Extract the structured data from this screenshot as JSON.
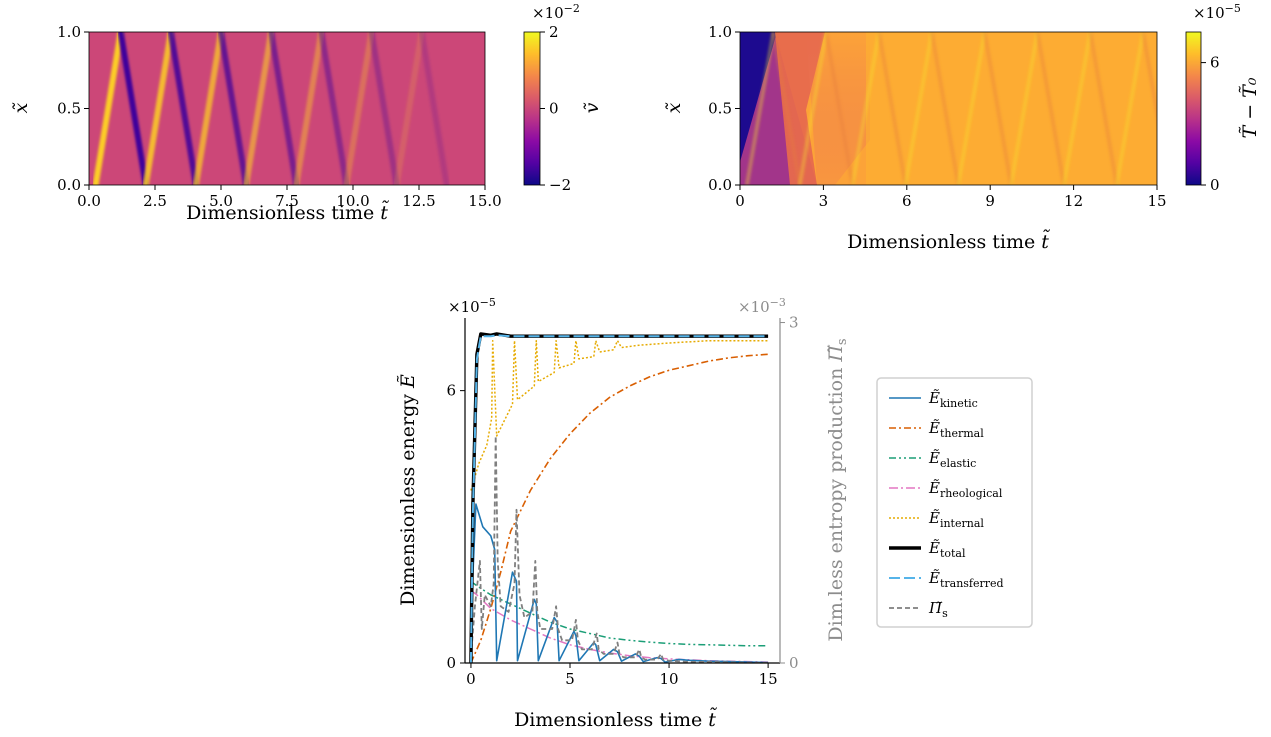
{
  "chart_data": [
    {
      "type": "heatmap",
      "xlabel": "Dimensionless time",
      "xlabel_symbol": "t̃",
      "ylabel": "x̃",
      "xlim": [
        0,
        15
      ],
      "ylim": [
        0,
        1
      ],
      "xticks": [
        0,
        2.5,
        5,
        7.5,
        10,
        12.5,
        15
      ],
      "xtick_labels": [
        "0.0",
        "2.5",
        "5.0",
        "7.5",
        "10.0",
        "12.5",
        "15.0"
      ],
      "yticks": [
        0,
        0.5,
        1
      ],
      "ytick_labels": [
        "0.0",
        "0.5",
        "1.0"
      ],
      "colorbar": {
        "label": "ṽ",
        "ticks": [
          -2,
          0,
          2
        ],
        "tick_labels": [
          "−2",
          "0",
          "2"
        ],
        "multiplier": "×10",
        "exponent": "−2",
        "range": [
          -2,
          2
        ],
        "colormap": "plasma"
      },
      "wave_speed": 0.95,
      "first_arrival": 0.25
    },
    {
      "type": "heatmap",
      "xlabel": "Dimensionless time",
      "xlabel_symbol": "t̃",
      "ylabel": "x̃",
      "xlim": [
        0,
        15
      ],
      "ylim": [
        0,
        1
      ],
      "xticks": [
        0,
        3,
        6,
        9,
        12,
        15
      ],
      "xtick_labels": [
        "0",
        "3",
        "6",
        "9",
        "12",
        "15"
      ],
      "yticks": [
        0,
        0.5,
        1
      ],
      "ytick_labels": [
        "0.0",
        "0.5",
        "1.0"
      ],
      "colorbar": {
        "label": "T̃ − T̃₀",
        "ticks": [
          0,
          6
        ],
        "tick_labels": [
          "0",
          "6"
        ],
        "multiplier": "×10",
        "exponent": "−5",
        "range": [
          0,
          7.5
        ],
        "colormap": "plasma"
      }
    },
    {
      "type": "line",
      "xlabel": "Dimensionless time",
      "xlabel_symbol": "t̃",
      "ylabel": "Dimensionless energy",
      "ylabel_symbol": "Ẽ",
      "ylabel_right": "Dim.less entropy production",
      "ylabel_right_symbol": "Π̃",
      "ylabel_right_sub": "s",
      "xlim": [
        -0.3,
        15.6
      ],
      "ylim": [
        0,
        7.6
      ],
      "ylim_right": [
        0,
        3.04
      ],
      "xticks": [
        0,
        5,
        10,
        15
      ],
      "xtick_labels": [
        "0",
        "5",
        "10",
        "15"
      ],
      "yticks": [
        0,
        6
      ],
      "ytick_labels": [
        "0",
        "6"
      ],
      "yticks_right": [
        0,
        3
      ],
      "ytick_labels_right": [
        "0",
        "3"
      ],
      "multiplier_left": "×10",
      "exponent_left": "−5",
      "multiplier_right": "×10",
      "exponent_right": "−3",
      "legend_position": "outside-right",
      "series": [
        {
          "name": "Ẽ",
          "sub": "kinetic",
          "color": "#1f77b4",
          "dash": "",
          "width": 1.6,
          "x": [
            0,
            0.25,
            0.6,
            1.0,
            1.2,
            1.3,
            2.1,
            2.3,
            2.35,
            3.2,
            3.3,
            3.4,
            4.2,
            4.35,
            4.45,
            5.2,
            5.3,
            5.45,
            6.2,
            6.3,
            6.5,
            7.2,
            7.4,
            7.6,
            8.3,
            8.5,
            8.7,
            9.4,
            9.6,
            9.8,
            10.5,
            11,
            12,
            13,
            14,
            15
          ],
          "y": [
            0.9,
            3.5,
            3.0,
            2.8,
            2.5,
            0.05,
            2.0,
            1.8,
            0.05,
            1.4,
            1.3,
            0.05,
            1.0,
            0.9,
            0.05,
            0.7,
            0.6,
            0.05,
            0.45,
            0.4,
            0.05,
            0.3,
            0.25,
            0.04,
            0.2,
            0.15,
            0.03,
            0.12,
            0.1,
            0.02,
            0.08,
            0.06,
            0.04,
            0.03,
            0.02,
            0.01
          ]
        },
        {
          "name": "Ẽ",
          "sub": "thermal",
          "color": "#d95f02",
          "dash": "7,3,2,3",
          "width": 1.6,
          "x": [
            0,
            0.5,
            1,
            1.5,
            2,
            3,
            4,
            5,
            6,
            7,
            8,
            9,
            10,
            11,
            12,
            13,
            14,
            15
          ],
          "y": [
            0,
            0.5,
            1.2,
            2.0,
            2.9,
            3.8,
            4.5,
            5.05,
            5.5,
            5.85,
            6.1,
            6.3,
            6.45,
            6.55,
            6.65,
            6.72,
            6.77,
            6.8
          ]
        },
        {
          "name": "Ẽ",
          "sub": "elastic",
          "color": "#1b9e77",
          "dash": "7,3,2,3,2,3",
          "width": 1.5,
          "x": [
            0,
            0.3,
            1,
            2,
            3,
            4,
            5,
            6,
            7,
            8,
            9,
            10,
            11,
            12,
            13,
            14,
            15
          ],
          "y": [
            1.8,
            1.7,
            1.5,
            1.3,
            1.1,
            0.9,
            0.75,
            0.65,
            0.55,
            0.5,
            0.46,
            0.43,
            0.41,
            0.4,
            0.39,
            0.38,
            0.38
          ]
        },
        {
          "name": "Ẽ",
          "sub": "rheological",
          "color": "#e377c2",
          "dash": "9,3,2,3",
          "width": 1.5,
          "x": [
            0,
            0.3,
            1,
            2,
            3,
            4,
            5,
            6,
            7,
            8,
            9,
            10,
            11,
            12,
            13,
            14,
            15
          ],
          "y": [
            1.6,
            1.5,
            1.2,
            0.95,
            0.75,
            0.55,
            0.4,
            0.3,
            0.22,
            0.16,
            0.12,
            0.09,
            0.07,
            0.05,
            0.04,
            0.03,
            0.02
          ]
        },
        {
          "name": "Ẽ",
          "sub": "internal",
          "color": "#e6ab02",
          "dash": "2,2",
          "width": 1.5,
          "x": [
            0,
            0.4,
            0.8,
            1.05,
            1.1,
            1.3,
            2.1,
            2.2,
            2.35,
            3.2,
            3.3,
            3.4,
            4.2,
            4.3,
            4.45,
            5.2,
            5.3,
            5.45,
            6.2,
            6.3,
            6.5,
            7.2,
            7.4,
            7.6,
            8.5,
            10,
            12,
            15
          ],
          "y": [
            3.8,
            4.4,
            4.8,
            5.4,
            7.1,
            5.0,
            5.7,
            7.1,
            5.8,
            6.1,
            7.1,
            6.2,
            6.4,
            7.1,
            6.5,
            6.6,
            7.1,
            6.7,
            6.75,
            7.1,
            6.85,
            6.9,
            7.1,
            6.95,
            7.0,
            7.05,
            7.1,
            7.1
          ]
        },
        {
          "name": "Ẽ",
          "sub": "total",
          "color": "#000000",
          "dash": "",
          "width": 3.4,
          "x": [
            0,
            0.1,
            0.3,
            0.5,
            1,
            1.3,
            2,
            5,
            10,
            15
          ],
          "y": [
            0,
            3.5,
            6.8,
            7.25,
            7.22,
            7.25,
            7.2,
            7.2,
            7.2,
            7.2
          ]
        },
        {
          "name": "Ẽ",
          "sub": "transferred",
          "color": "#56b4e9",
          "dash": "11,4",
          "width": 2.0,
          "x": [
            0,
            0.1,
            0.3,
            0.5,
            1,
            1.3,
            2,
            5,
            10,
            15
          ],
          "y": [
            0,
            3.3,
            6.7,
            7.2,
            7.2,
            7.22,
            7.2,
            7.2,
            7.2,
            7.2
          ]
        },
        {
          "name": "Π̃",
          "sub": "s",
          "color": "#7f7f7f",
          "dash": "5,3",
          "width": 1.8,
          "axis": "right",
          "x": [
            0,
            0.2,
            0.45,
            0.55,
            0.7,
            1.0,
            1.15,
            1.25,
            1.35,
            1.5,
            1.9,
            2.2,
            2.3,
            2.45,
            2.7,
            3.1,
            3.25,
            3.35,
            3.5,
            4.1,
            4.3,
            4.4,
            4.6,
            5.1,
            5.3,
            5.4,
            5.6,
            6.1,
            6.35,
            6.45,
            6.7,
            7.2,
            7.4,
            7.5,
            7.7,
            8.3,
            8.5,
            8.6,
            8.8,
            9.4,
            9.6,
            9.7,
            10,
            11,
            12,
            13,
            15
          ],
          "y": [
            0.05,
            0.5,
            0.9,
            0.3,
            0.6,
            0.5,
            0.7,
            2.0,
            0.9,
            0.5,
            0.45,
            0.7,
            1.35,
            0.6,
            0.4,
            0.45,
            0.9,
            0.45,
            0.3,
            0.3,
            0.5,
            0.3,
            0.2,
            0.2,
            0.38,
            0.2,
            0.12,
            0.12,
            0.26,
            0.12,
            0.08,
            0.08,
            0.18,
            0.08,
            0.05,
            0.05,
            0.12,
            0.05,
            0.03,
            0.03,
            0.08,
            0.03,
            0.02,
            0.01,
            0.01,
            0.005,
            0.0
          ]
        }
      ]
    }
  ]
}
